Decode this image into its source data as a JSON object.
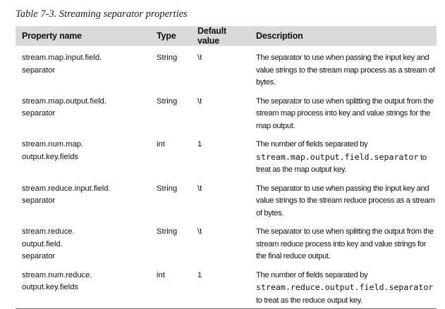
{
  "caption": "Table 7-3. Streaming separator properties",
  "columns": {
    "property": "Property name",
    "type": "Type",
    "default": "Default value",
    "description": "Description"
  },
  "rows": [
    {
      "property": "stream.map.input.field.\nseparator",
      "type": "String",
      "default": "\\t",
      "desc_before": "The separator to use when passing the input key and value strings to the stream map process as a stream of bytes.",
      "desc_code": "",
      "desc_after": ""
    },
    {
      "property": "stream.map.output.field.\nseparator",
      "type": "String",
      "default": "\\t",
      "desc_before": "The separator to use when splitting the output from the stream map process into key and value strings for the map output.",
      "desc_code": "",
      "desc_after": ""
    },
    {
      "property": "stream.num.map.\noutput.key.fields",
      "type": "int",
      "default": "1",
      "desc_before": "The number of fields separated by",
      "desc_code": "stream.map.output.field.separator",
      "desc_after": "to treat as the map output key."
    },
    {
      "property": "stream.reduce.input.field.\nseparator",
      "type": "String",
      "default": "\\t",
      "desc_before": "The separator to use when passing the input key and value strings to the stream reduce process as a stream of bytes.",
      "desc_code": "",
      "desc_after": ""
    },
    {
      "property": "stream.reduce.\noutput.field.\nseparator",
      "type": "String",
      "default": "\\t",
      "desc_before": "The separator to use when splitting the output from the stream reduce process into key and value strings for the final reduce output.",
      "desc_code": "",
      "desc_after": ""
    },
    {
      "property": "stream.num.reduce.\noutput.key.fields",
      "type": "int",
      "default": "1",
      "desc_before": "The number of fields separated by",
      "desc_code": "stream.reduce.output.field.separator",
      "desc_after": "to treat as the reduce output key."
    }
  ]
}
